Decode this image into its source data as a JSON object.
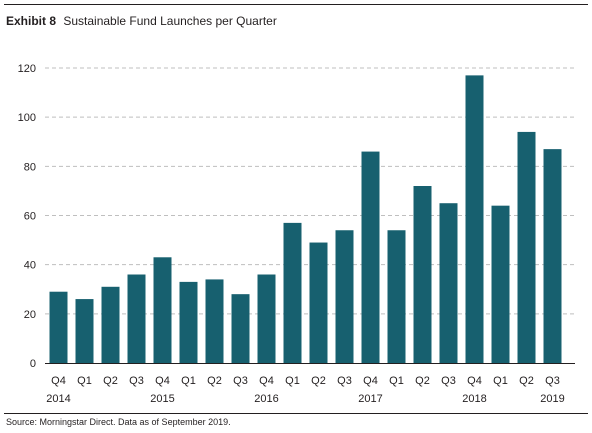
{
  "header": {
    "exhibit_label": "Exhibit 8",
    "title": "Sustainable Fund Launches per Quarter"
  },
  "footer": {
    "source": "Source: Morningstar Direct. Data as of September 2019."
  },
  "colors": {
    "bar": "#17606f",
    "grid": "#bfbfbf",
    "text": "#231f20"
  },
  "chart_data": {
    "type": "bar",
    "title": "Sustainable Fund Launches per Quarter",
    "xlabel": "",
    "ylabel": "",
    "ylim": [
      0,
      120
    ],
    "yticks": [
      0,
      20,
      40,
      60,
      80,
      100,
      120
    ],
    "grid": true,
    "grid_style": "dashed horizontal",
    "legend": "none",
    "categories": [
      "Q4 2014",
      "Q1 2015",
      "Q2 2015",
      "Q3 2015",
      "Q4 2015",
      "Q1 2016",
      "Q2 2016",
      "Q3 2016",
      "Q4 2016",
      "Q1 2017",
      "Q2 2017",
      "Q3 2017",
      "Q4 2017",
      "Q1 2018",
      "Q2 2018",
      "Q3 2018",
      "Q4 2018",
      "Q1 2019",
      "Q2 2019",
      "Q3 2019"
    ],
    "quarter_labels": [
      "Q4",
      "Q1",
      "Q2",
      "Q3",
      "Q4",
      "Q1",
      "Q2",
      "Q3",
      "Q4",
      "Q1",
      "Q2",
      "Q3",
      "Q4",
      "Q1",
      "Q2",
      "Q3",
      "Q4",
      "Q1",
      "Q2",
      "Q3"
    ],
    "year_labels": [
      "2014",
      "",
      "",
      "",
      "2015",
      "",
      "",
      "",
      "2016",
      "",
      "",
      "",
      "2017",
      "",
      "",
      "",
      "2018",
      "",
      "",
      "2019"
    ],
    "values": [
      29,
      26,
      31,
      36,
      43,
      33,
      34,
      28,
      36,
      57,
      49,
      54,
      86,
      54,
      72,
      65,
      117,
      64,
      94,
      87
    ]
  }
}
